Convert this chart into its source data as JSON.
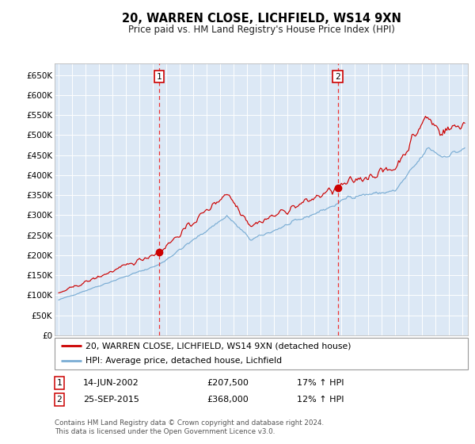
{
  "title": "20, WARREN CLOSE, LICHFIELD, WS14 9XN",
  "subtitle": "Price paid vs. HM Land Registry's House Price Index (HPI)",
  "legend_label_red": "20, WARREN CLOSE, LICHFIELD, WS14 9XN (detached house)",
  "legend_label_blue": "HPI: Average price, detached house, Lichfield",
  "annotation1_date": "14-JUN-2002",
  "annotation1_price": "£207,500",
  "annotation1_pct": "17% ↑ HPI",
  "annotation1_year": 2002.45,
  "annotation1_value": 207500,
  "annotation2_date": "25-SEP-2015",
  "annotation2_price": "£368,000",
  "annotation2_pct": "12% ↑ HPI",
  "annotation2_year": 2015.73,
  "annotation2_value": 368000,
  "ylim": [
    0,
    680000
  ],
  "yticks": [
    0,
    50000,
    100000,
    150000,
    200000,
    250000,
    300000,
    350000,
    400000,
    450000,
    500000,
    550000,
    600000,
    650000
  ],
  "xmin": 1994.7,
  "xmax": 2025.4,
  "plot_bg": "#dce8f5",
  "red_line_color": "#cc0000",
  "blue_line_color": "#7aadd4",
  "grid_color": "#ffffff",
  "dashed_line_color": "#ee3333",
  "footer": "Contains HM Land Registry data © Crown copyright and database right 2024.\nThis data is licensed under the Open Government Licence v3.0."
}
